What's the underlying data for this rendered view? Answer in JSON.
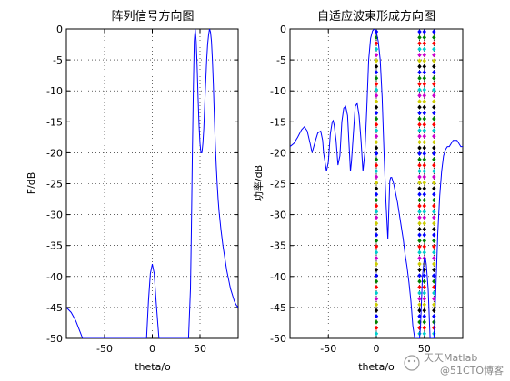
{
  "chart_data": [
    {
      "type": "line",
      "title": "阵列信号方向图",
      "xlabel": "theta/o",
      "ylabel": "F/dB",
      "xlim": [
        -90,
        90
      ],
      "ylim": [
        -50,
        0
      ],
      "xticks": [
        -50,
        0,
        50
      ],
      "yticks": [
        0,
        -5,
        -10,
        -15,
        -20,
        -25,
        -30,
        -35,
        -40,
        -45,
        -50
      ],
      "grid": true,
      "series": [
        {
          "color": "#0000ff",
          "x": [
            -90,
            -85,
            -80,
            -76,
            -73,
            -6,
            -4,
            -2,
            0,
            2,
            4,
            6,
            7,
            38,
            40,
            41,
            42,
            43,
            44,
            45,
            46,
            47,
            48,
            49,
            50,
            51,
            52,
            53,
            54,
            55,
            56,
            57,
            58,
            59,
            60,
            61,
            62,
            63,
            64,
            65,
            66,
            67,
            68,
            69,
            70,
            72,
            74,
            76,
            78,
            80,
            82,
            84,
            86,
            88,
            90
          ],
          "y": [
            -45,
            -45.8,
            -47.2,
            -48.8,
            -50,
            -50,
            -44,
            -39.5,
            -38,
            -39.5,
            -44,
            -48,
            -50,
            -50,
            -42,
            -32,
            -20,
            -10,
            -2,
            0,
            -2,
            -6,
            -11,
            -15.5,
            -18.5,
            -20,
            -20,
            -18.5,
            -16,
            -12,
            -8.5,
            -5,
            -2.5,
            -1,
            0,
            -0.5,
            -2,
            -5,
            -9,
            -14,
            -18.5,
            -22,
            -25,
            -27.5,
            -29.5,
            -32.5,
            -35,
            -37,
            -39,
            -40.5,
            -42,
            -43,
            -44,
            -44.6,
            -45
          ]
        }
      ]
    },
    {
      "type": "line",
      "title": "自适应波束形成方向图",
      "xlabel": "theta/o",
      "ylabel": "功率/dB",
      "xlim": [
        -90,
        90
      ],
      "ylim": [
        -50,
        0
      ],
      "xticks": [
        -50,
        0,
        50
      ],
      "yticks": [
        0,
        -5,
        -10,
        -15,
        -20,
        -25,
        -30,
        -35,
        -40,
        -45,
        -50
      ],
      "grid": true,
      "series": [
        {
          "color": "#0000ff",
          "x": [
            -90,
            -86,
            -82,
            -78,
            -75,
            -72,
            -69,
            -67,
            -64,
            -61,
            -58,
            -56,
            -55,
            -54,
            -52,
            -50,
            -48,
            -46,
            -45,
            -44,
            -42,
            -40,
            -38,
            -36,
            -34,
            -32,
            -30,
            -28,
            -27,
            -26,
            -24,
            -22,
            -20,
            -18,
            -16,
            -14,
            -12,
            -10,
            -8,
            -6,
            -4,
            -2,
            0,
            2,
            4,
            6,
            8,
            10,
            12,
            14,
            15,
            16,
            18,
            20,
            22,
            24,
            26,
            28,
            30,
            32,
            34,
            36,
            38,
            40,
            42,
            44,
            45,
            46,
            48,
            50,
            51,
            52,
            54,
            56,
            58,
            59,
            60,
            61,
            62,
            64,
            66,
            68,
            70,
            72,
            74,
            76,
            78,
            80,
            82,
            84,
            86,
            88,
            90
          ],
          "y": [
            -19,
            -18.5,
            -17.5,
            -16.3,
            -15.8,
            -16.5,
            -18.5,
            -20,
            -18.3,
            -16.8,
            -16.5,
            -18,
            -20,
            -21,
            -23,
            -21.5,
            -17,
            -15,
            -14.8,
            -15.5,
            -18,
            -22,
            -20.5,
            -15,
            -12.8,
            -12.5,
            -14,
            -20,
            -23,
            -21.5,
            -17,
            -12.5,
            -12,
            -14,
            -18,
            -23,
            -20,
            -13,
            -5,
            -1.5,
            -0.3,
            0,
            -0.5,
            -2,
            -5,
            -11,
            -20,
            -28,
            -34,
            -24.5,
            -24,
            -24,
            -25,
            -26.5,
            -28,
            -30,
            -32,
            -34,
            -36.5,
            -38.5,
            -41,
            -44,
            -48,
            -50,
            -50,
            -50,
            -50,
            -48,
            -40,
            -37,
            -37,
            -38,
            -42,
            -50,
            -50,
            -50,
            -50,
            -46,
            -42,
            -33,
            -27,
            -23,
            -20.5,
            -19.5,
            -19,
            -19,
            -18.5,
            -18,
            -18,
            -18,
            -18.5,
            -19,
            -19
          ]
        }
      ],
      "marker_lines": {
        "x": [
          0,
          45,
          50,
          60
        ],
        "colors": [
          "#0000ff",
          "#008000",
          "#ff0000",
          "#00cccc",
          "#cc00cc",
          "#cccc00",
          "#000000"
        ]
      }
    }
  ],
  "watermark": {
    "brand": "天天Matlab",
    "site": "@51CTO博客"
  }
}
